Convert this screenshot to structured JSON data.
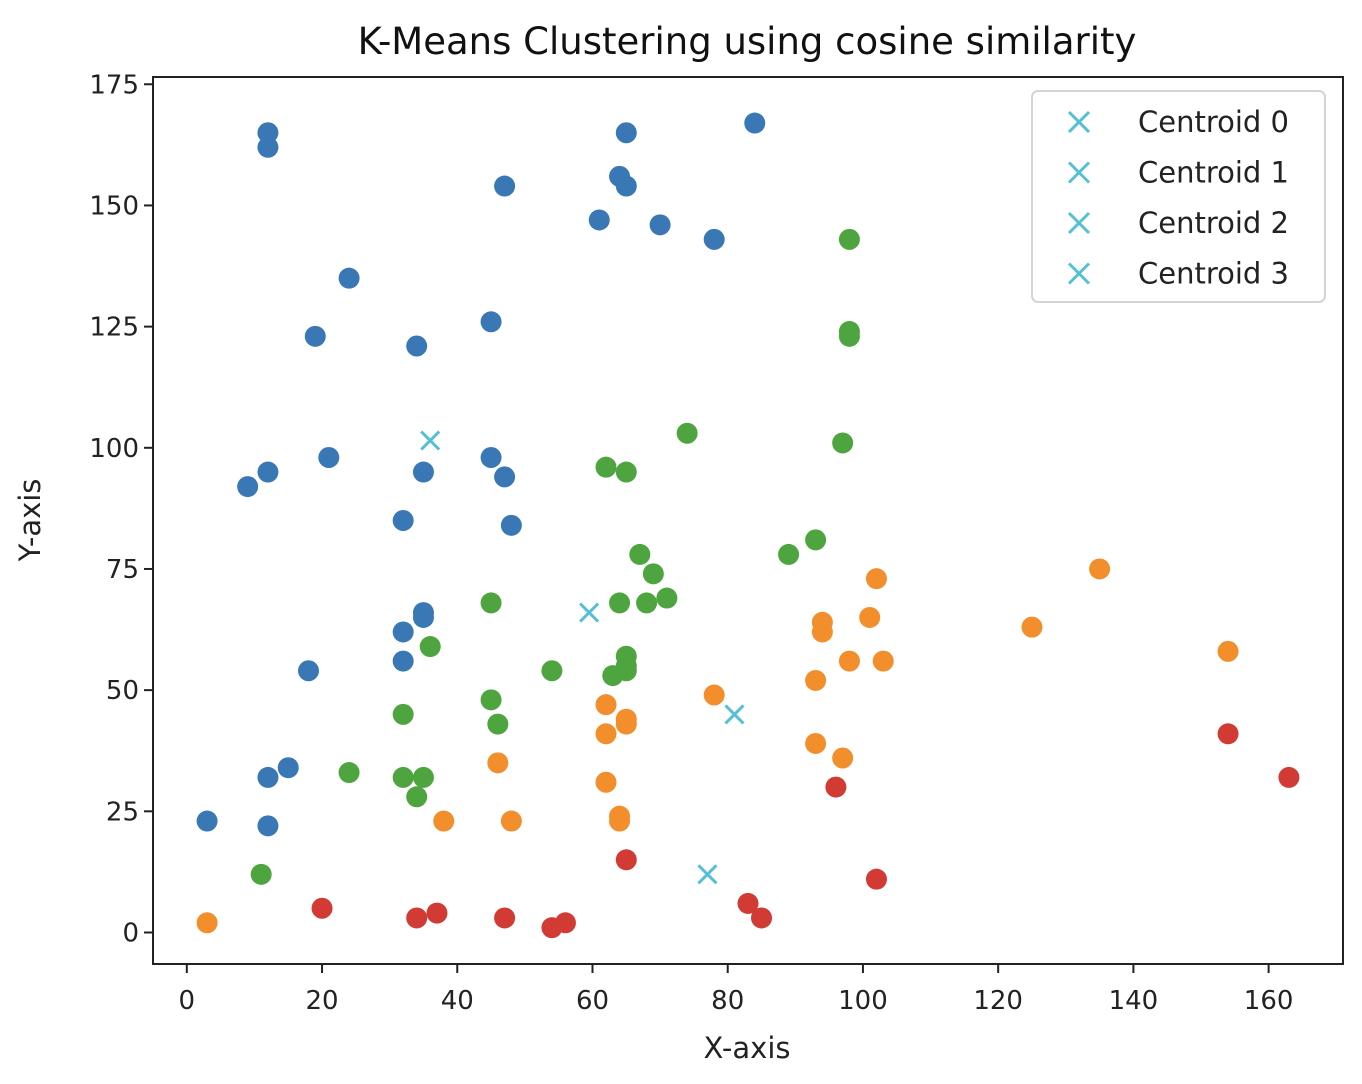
{
  "chart_data": {
    "type": "scatter",
    "title": "K-Means Clustering using cosine similarity",
    "xlabel": "X-axis",
    "ylabel": "Y-axis",
    "xlim": [
      -5,
      171
    ],
    "ylim": [
      -6.5,
      176.5
    ],
    "xticks": [
      0,
      20,
      40,
      60,
      80,
      100,
      120,
      140,
      160
    ],
    "yticks": [
      0,
      25,
      50,
      75,
      100,
      125,
      150,
      175
    ],
    "grid": false,
    "legend_position": "top-right",
    "series": [
      {
        "color": "#3a78b5",
        "points": [
          [
            12,
            165
          ],
          [
            12,
            162
          ],
          [
            65,
            165
          ],
          [
            84,
            167
          ],
          [
            64,
            156
          ],
          [
            65,
            154
          ],
          [
            47,
            154
          ],
          [
            61,
            147
          ],
          [
            70,
            146
          ],
          [
            78,
            143
          ],
          [
            24,
            135
          ],
          [
            19,
            123
          ],
          [
            34,
            121
          ],
          [
            45,
            126
          ],
          [
            9,
            92
          ],
          [
            12,
            95
          ],
          [
            21,
            98
          ],
          [
            35,
            95
          ],
          [
            45,
            98
          ],
          [
            47,
            94
          ],
          [
            32,
            85
          ],
          [
            48,
            84
          ],
          [
            35,
            66
          ],
          [
            35,
            65
          ],
          [
            32,
            62
          ],
          [
            32,
            56
          ],
          [
            18,
            54
          ],
          [
            12,
            32
          ],
          [
            15,
            34
          ],
          [
            3,
            23
          ],
          [
            12,
            22
          ]
        ]
      },
      {
        "color": "#f28e2b",
        "points": [
          [
            135,
            75
          ],
          [
            102,
            73
          ],
          [
            94,
            64
          ],
          [
            94,
            62
          ],
          [
            101,
            65
          ],
          [
            125,
            63
          ],
          [
            98,
            56
          ],
          [
            103,
            56
          ],
          [
            154,
            58
          ],
          [
            93,
            52
          ],
          [
            78,
            49
          ],
          [
            62,
            47
          ],
          [
            65,
            44
          ],
          [
            65,
            43
          ],
          [
            62,
            41
          ],
          [
            93,
            39
          ],
          [
            97,
            36
          ],
          [
            46,
            35
          ],
          [
            62,
            31
          ],
          [
            64,
            24
          ],
          [
            64,
            23
          ],
          [
            38,
            23
          ],
          [
            48,
            23
          ],
          [
            3,
            2
          ]
        ]
      },
      {
        "color": "#4ea43e",
        "points": [
          [
            98,
            143
          ],
          [
            98,
            124
          ],
          [
            98,
            123
          ],
          [
            74,
            103
          ],
          [
            97,
            101
          ],
          [
            62,
            96
          ],
          [
            65,
            95
          ],
          [
            93,
            81
          ],
          [
            89,
            78
          ],
          [
            67,
            78
          ],
          [
            69,
            74
          ],
          [
            71,
            69
          ],
          [
            64,
            68
          ],
          [
            68,
            68
          ],
          [
            45,
            68
          ],
          [
            36,
            59
          ],
          [
            54,
            54
          ],
          [
            65,
            57
          ],
          [
            65,
            55
          ],
          [
            65,
            54
          ],
          [
            63,
            53
          ],
          [
            45,
            48
          ],
          [
            46,
            43
          ],
          [
            32,
            45
          ],
          [
            24,
            33
          ],
          [
            32,
            32
          ],
          [
            35,
            32
          ],
          [
            34,
            28
          ],
          [
            11,
            12
          ]
        ]
      },
      {
        "color": "#d13b34",
        "points": [
          [
            154,
            41
          ],
          [
            163,
            32
          ],
          [
            96,
            30
          ],
          [
            65,
            15
          ],
          [
            102,
            11
          ],
          [
            83,
            6
          ],
          [
            85,
            3
          ],
          [
            20,
            5
          ],
          [
            34,
            3
          ],
          [
            37,
            4
          ],
          [
            47,
            3
          ],
          [
            54,
            1
          ],
          [
            56,
            2
          ]
        ]
      }
    ],
    "centroids": {
      "color": "#55c0d4",
      "points": [
        [
          36,
          101.5
        ],
        [
          59.5,
          66
        ],
        [
          81,
          45
        ],
        [
          77,
          12
        ]
      ]
    },
    "legend": [
      "Centroid 0",
      "Centroid 1",
      "Centroid 2",
      "Centroid 3"
    ]
  }
}
